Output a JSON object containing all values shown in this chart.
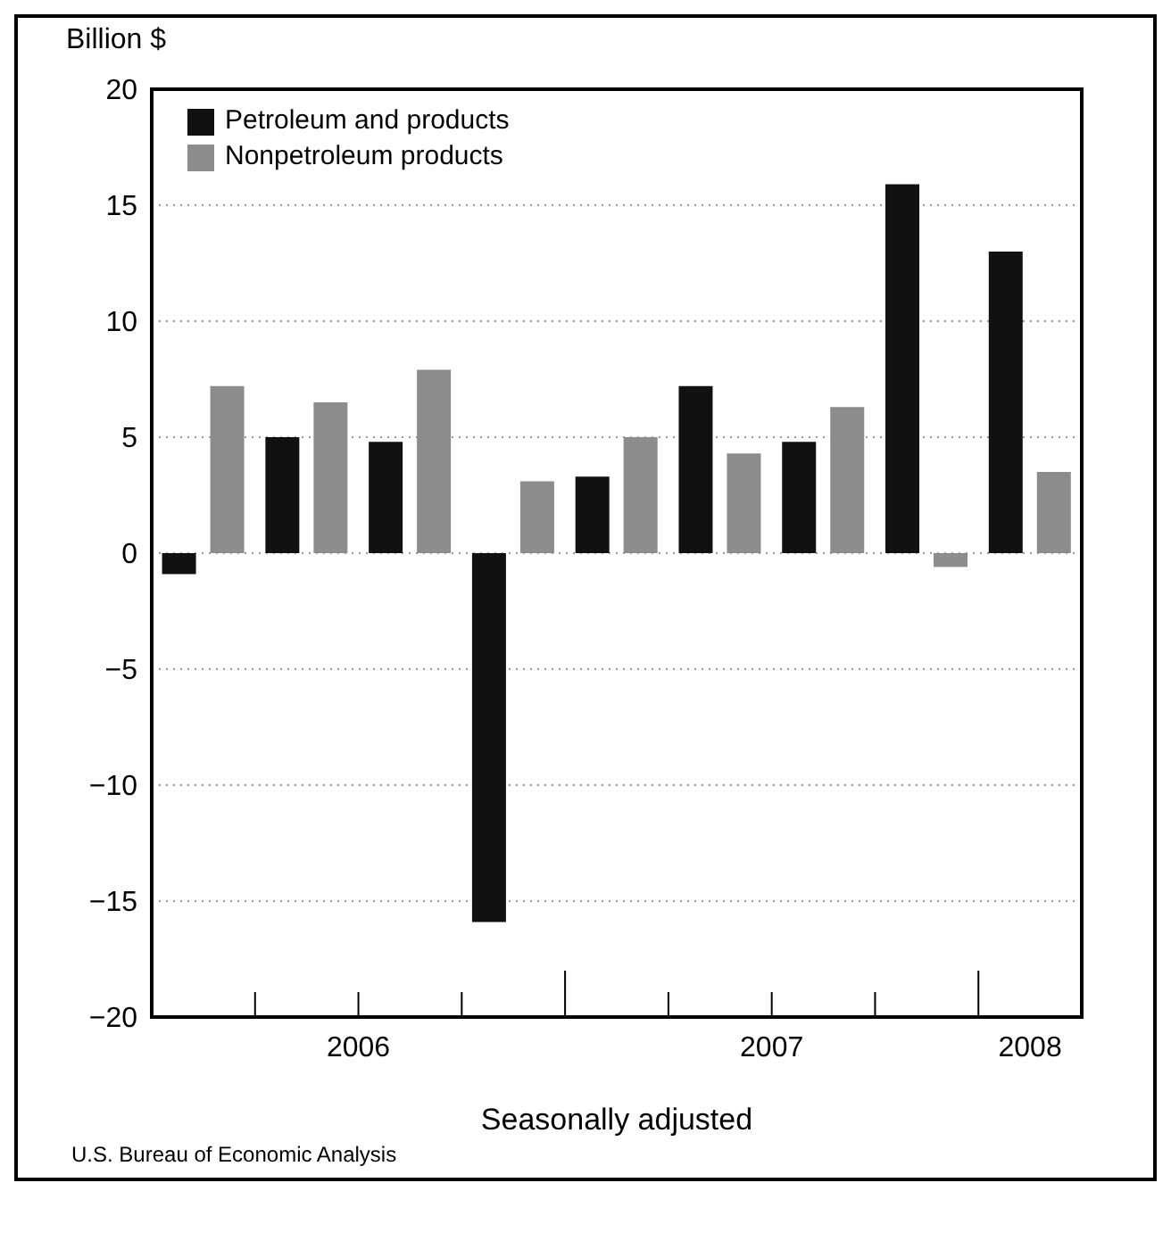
{
  "chart_data": {
    "type": "bar",
    "ylabel": "Billion $",
    "xlabel": "Seasonally adjusted",
    "categories": [
      null,
      null,
      null,
      null,
      null,
      null,
      null,
      null,
      null
    ],
    "series": [
      {
        "name": "Petroleum and products",
        "color": "#111111",
        "values": [
          -0.9,
          5.0,
          4.8,
          -15.9,
          3.3,
          7.2,
          4.8,
          15.9,
          13.0
        ]
      },
      {
        "name": "Nonpetroleum products",
        "color": "#8c8c8c",
        "values": [
          7.2,
          6.5,
          7.9,
          3.1,
          5.0,
          4.3,
          6.3,
          -0.6,
          3.5
        ]
      }
    ],
    "ylim": [
      -20,
      20
    ],
    "yticks": [
      {
        "value": -20,
        "label": "−20"
      },
      {
        "value": -15,
        "label": "−15"
      },
      {
        "value": -10,
        "label": "−10"
      },
      {
        "value": -5,
        "label": "−5"
      },
      0,
      5,
      10,
      15,
      20
    ],
    "grid": "y",
    "legend": "top left",
    "annotations": [
      "2006",
      "2007",
      "2008",
      "U.S. Bureau of Economic Analysis"
    ]
  }
}
